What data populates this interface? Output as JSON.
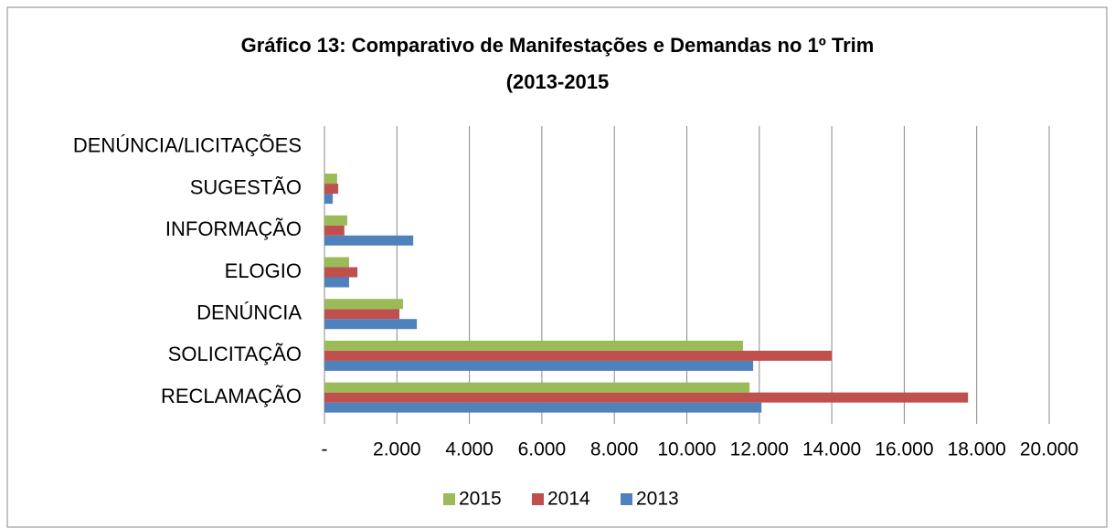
{
  "chart_data": {
    "type": "hbar",
    "title": "Gráfico 13: Comparativo de Manifestações e Demandas no 1º Trim (2013-2015",
    "categories": [
      "RECLAMAÇÃO",
      "SOLICITAÇÃO",
      "DENÚNCIA",
      "ELOGIO",
      "INFORMAÇÃO",
      "SUGESTÃO",
      "DENÚNCIA/LICITAÇÕES"
    ],
    "series": [
      {
        "name": "2013",
        "color": "#4f81bd",
        "values": [
          12060,
          11830,
          2550,
          680,
          2450,
          230,
          0
        ]
      },
      {
        "name": "2014",
        "color": "#c0504d",
        "values": [
          17760,
          14000,
          2070,
          910,
          550,
          380,
          0
        ]
      },
      {
        "name": "2015",
        "color": "#9bbb59",
        "values": [
          11730,
          11550,
          2170,
          680,
          630,
          350,
          0
        ]
      }
    ],
    "xlim": [
      0,
      20000
    ],
    "xticks": [
      {
        "value": 0,
        "label": "-"
      },
      {
        "value": 2000,
        "label": "2.000"
      },
      {
        "value": 4000,
        "label": "4.000"
      },
      {
        "value": 6000,
        "label": "6.000"
      },
      {
        "value": 8000,
        "label": "8.000"
      },
      {
        "value": 10000,
        "label": "10.000"
      },
      {
        "value": 12000,
        "label": "12.000"
      },
      {
        "value": 14000,
        "label": "14.000"
      },
      {
        "value": 16000,
        "label": "16.000"
      },
      {
        "value": 18000,
        "label": "18.000"
      },
      {
        "value": 20000,
        "label": "20.000"
      }
    ],
    "grid": true,
    "legend": "bottom"
  }
}
